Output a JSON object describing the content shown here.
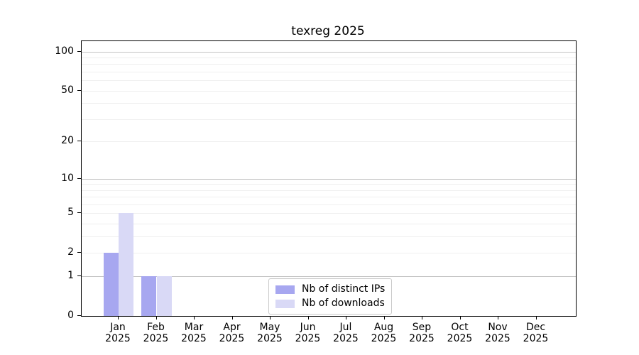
{
  "chart_data": {
    "type": "bar",
    "title": "texreg 2025",
    "categories": [
      "Jan",
      "Feb",
      "Mar",
      "Apr",
      "May",
      "Jun",
      "Jul",
      "Aug",
      "Sep",
      "Oct",
      "Nov",
      "Dec"
    ],
    "category_year": "2025",
    "series": [
      {
        "name": "Nb of distinct IPs",
        "color": "#a7a7f0",
        "values": [
          2,
          1,
          0,
          0,
          0,
          0,
          0,
          0,
          0,
          0,
          0,
          0
        ]
      },
      {
        "name": "Nb of downloads",
        "color": "#d9d9f6",
        "values": [
          5,
          1,
          0,
          0,
          0,
          0,
          0,
          0,
          0,
          0,
          0,
          0
        ]
      }
    ],
    "xlabel": "",
    "ylabel": "",
    "yscale": "log1p",
    "yticks": [
      0,
      1,
      2,
      5,
      10,
      20,
      50,
      100
    ],
    "ylim": [
      0,
      120
    ],
    "grid": "horizontal",
    "grid_major_values": [
      1,
      10,
      100
    ],
    "grid_minor_values": [
      2,
      3,
      4,
      5,
      6,
      7,
      8,
      9,
      20,
      30,
      40,
      50,
      60,
      70,
      80,
      90
    ],
    "grid_major_color": "#c3c3c3",
    "grid_minor_color": "#efefef",
    "axis_color": "#000000",
    "legend_position": "inside-bottom-center"
  }
}
